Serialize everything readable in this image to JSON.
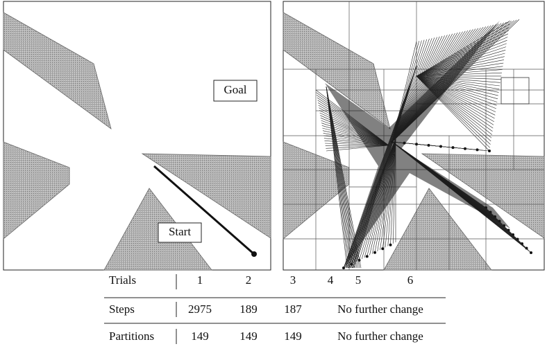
{
  "left_panel": {
    "goal": "Goal",
    "start": "Start"
  },
  "table": {
    "rows": [
      {
        "label": "Trials",
        "cells": [
          "1",
          "2",
          "3",
          "4",
          "5",
          "6"
        ]
      },
      {
        "label": "Steps",
        "cells": [
          "2975",
          "189",
          "187",
          "No further change"
        ]
      },
      {
        "label": "Partitions",
        "cells": [
          "149",
          "149",
          "149",
          "No further change"
        ]
      }
    ]
  }
}
